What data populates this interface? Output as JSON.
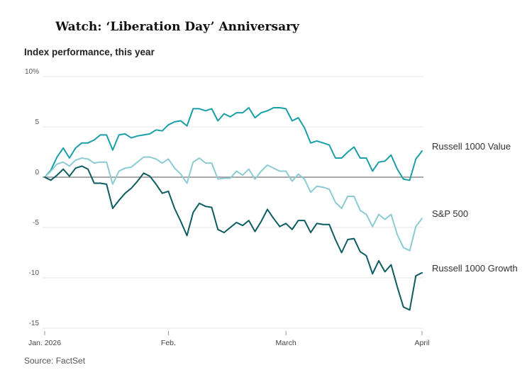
{
  "title": "Watch: ‘Liberation Day’ Anniversary",
  "subtitle": "Index performance, this year",
  "source": "Source: FactSet",
  "chart_data": {
    "type": "line",
    "title": "Watch: ‘Liberation Day’ Anniversary",
    "subtitle": "Index performance, this year",
    "xlabel": "",
    "ylabel": "",
    "ylim": [
      -15,
      10
    ],
    "yticks": [
      {
        "value": 10,
        "label": "10%"
      },
      {
        "value": 5,
        "label": "5"
      },
      {
        "value": 0,
        "label": "0"
      },
      {
        "value": -5,
        "label": "-5"
      },
      {
        "value": -10,
        "label": "-10"
      },
      {
        "value": -15,
        "label": "-15"
      }
    ],
    "xticks": [
      {
        "index": 0,
        "label": "Jan. 2026"
      },
      {
        "index": 20,
        "label": "Feb."
      },
      {
        "index": 39,
        "label": "March"
      },
      {
        "index": 61,
        "label": "April"
      }
    ],
    "x_count": 62,
    "grid": true,
    "series": [
      {
        "name": "Russell 1000 Value",
        "color": "#1a9fa8",
        "values": [
          0,
          0.7,
          2.0,
          2.9,
          1.9,
          2.9,
          3.4,
          3.4,
          3.7,
          4.2,
          4.2,
          2.7,
          4.2,
          4.3,
          3.9,
          4.1,
          4.2,
          4.3,
          4.7,
          4.6,
          5.2,
          5.5,
          5.6,
          5.1,
          6.8,
          6.8,
          6.6,
          6.8,
          5.6,
          6.3,
          6.0,
          6.4,
          6.4,
          6.9,
          5.9,
          6.4,
          6.6,
          6.9,
          6.9,
          6.8,
          5.6,
          5.9,
          4.9,
          3.4,
          3.6,
          3.4,
          3.2,
          1.9,
          1.9,
          2.5,
          3.0,
          1.9,
          1.9,
          0.6,
          1.5,
          1.6,
          2.2,
          0.8,
          -0.2,
          -0.3,
          1.8,
          2.6
        ]
      },
      {
        "name": "S&P 500",
        "color": "#8ccbd3",
        "values": [
          0,
          0.6,
          1.3,
          1.5,
          1.1,
          1.7,
          1.9,
          1.8,
          1.4,
          1.5,
          1.5,
          -0.7,
          0.6,
          0.9,
          1.0,
          1.5,
          2.0,
          2.0,
          1.8,
          1.4,
          1.8,
          0.9,
          0.3,
          -0.6,
          1.5,
          1.9,
          1.4,
          1.4,
          -0.2,
          -0.1,
          -0.1,
          0.6,
          0.2,
          0.8,
          -0.2,
          0.6,
          1.2,
          0.9,
          0.6,
          0.6,
          -0.4,
          0.3,
          -0.2,
          -1.5,
          -0.9,
          -1.0,
          -1.2,
          -2.5,
          -3.1,
          -1.9,
          -1.9,
          -3.3,
          -3.7,
          -4.9,
          -3.7,
          -4.2,
          -3.7,
          -5.7,
          -7.0,
          -7.3,
          -4.9,
          -4.1
        ]
      },
      {
        "name": "Russell 1000 Growth",
        "color": "#0c5c62",
        "values": [
          0,
          -0.3,
          0.2,
          0.8,
          0.1,
          0.9,
          1.1,
          0.8,
          -0.6,
          -0.6,
          -0.7,
          -3.1,
          -2.3,
          -1.6,
          -1.1,
          -0.4,
          0.4,
          0.1,
          -0.7,
          -1.6,
          -1.4,
          -3.1,
          -4.4,
          -5.8,
          -3.5,
          -2.6,
          -2.9,
          -3.0,
          -5.2,
          -5.5,
          -5.0,
          -4.5,
          -4.8,
          -4.3,
          -5.4,
          -4.4,
          -3.2,
          -4.1,
          -4.9,
          -4.6,
          -5.2,
          -4.3,
          -4.3,
          -5.5,
          -4.6,
          -4.7,
          -4.7,
          -6.2,
          -7.5,
          -6.2,
          -6.1,
          -7.4,
          -7.8,
          -9.6,
          -8.3,
          -9.4,
          -8.7,
          -10.9,
          -12.9,
          -13.2,
          -9.8,
          -9.5
        ]
      }
    ]
  }
}
